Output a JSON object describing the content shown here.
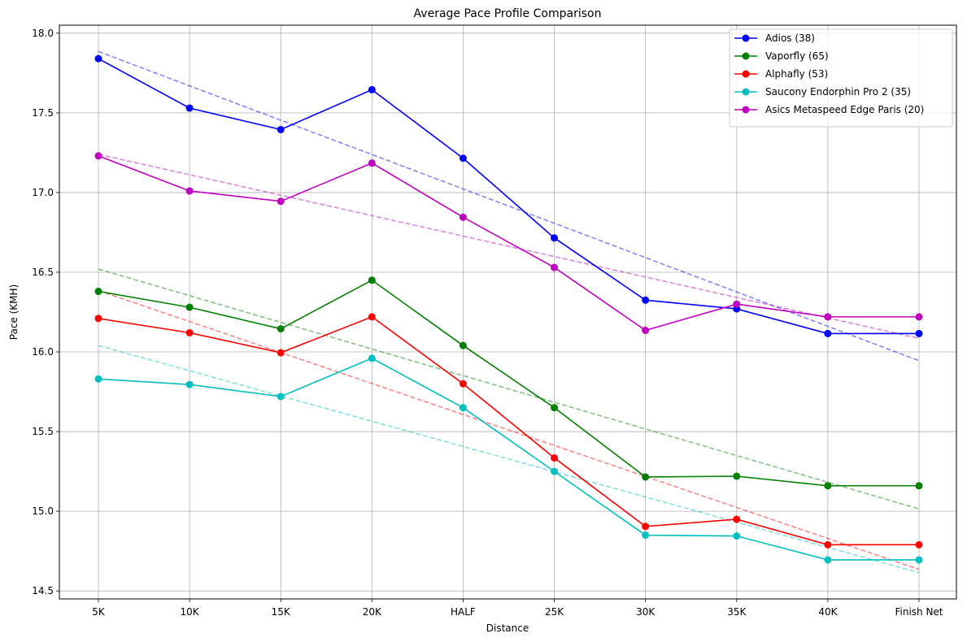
{
  "chart_data": {
    "type": "line",
    "title": "Average Pace Profile Comparison",
    "xlabel": "Distance",
    "ylabel": "Pace (KMH)",
    "categories": [
      "5K",
      "10K",
      "15K",
      "20K",
      "HALF",
      "25K",
      "30K",
      "35K",
      "40K",
      "Finish Net"
    ],
    "ylim": [
      14.45,
      18.05
    ],
    "yticks": [
      "14.5",
      "15.0",
      "15.5",
      "16.0",
      "16.5",
      "17.0",
      "17.5",
      "18.0"
    ],
    "grid": true,
    "legend_position": "top-right",
    "series": [
      {
        "name": "Adios (38)",
        "color": "#0000ff",
        "values": [
          17.84,
          17.53,
          17.395,
          17.645,
          17.215,
          16.715,
          16.325,
          16.27,
          16.115,
          16.115
        ],
        "trend": [
          17.885,
          15.945
        ]
      },
      {
        "name": "Vaporfly (65)",
        "color": "#008000",
        "values": [
          16.38,
          16.28,
          16.145,
          16.45,
          16.04,
          15.65,
          15.215,
          15.22,
          15.16,
          15.16
        ],
        "trend": [
          16.52,
          15.015
        ]
      },
      {
        "name": "Alphafly (53)",
        "color": "#ff0000",
        "values": [
          16.21,
          16.12,
          15.995,
          16.22,
          15.8,
          15.335,
          14.905,
          14.95,
          14.79,
          14.79
        ],
        "trend": [
          16.385,
          14.635
        ]
      },
      {
        "name": "Saucony Endorphin Pro 2 (35)",
        "color": "#00bfbf",
        "values": [
          15.83,
          15.795,
          15.72,
          15.96,
          15.65,
          15.25,
          14.85,
          14.845,
          14.695,
          14.695
        ],
        "trend": [
          16.04,
          14.615
        ]
      },
      {
        "name": "Asics Metaspeed Edge Paris (20)",
        "color": "#bf00bf",
        "values": [
          17.23,
          17.01,
          16.945,
          17.185,
          16.845,
          16.53,
          16.135,
          16.3,
          16.22,
          16.22
        ],
        "trend": [
          17.24,
          16.085
        ]
      }
    ]
  }
}
